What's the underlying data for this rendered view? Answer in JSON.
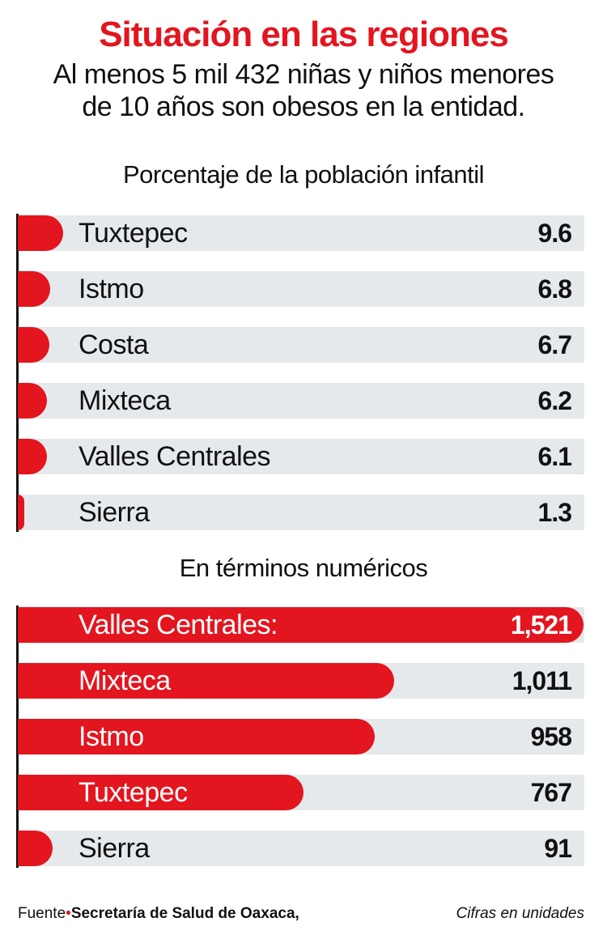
{
  "title": "Situación en las regiones",
  "subtitle_line1": "Al menos 5 mil 432 niñas y niños menores",
  "subtitle_line2": "de 10 años son obesos en la entidad.",
  "colors": {
    "accent": "#e3151f",
    "band": "#e6e9ec"
  },
  "chart_data": [
    {
      "type": "bar",
      "orientation": "horizontal",
      "title": "Porcentaje de la población infantil",
      "categories": [
        "Tuxtepec",
        "Istmo",
        "Costa",
        "Mixteca",
        "Valles Centrales",
        "Sierra"
      ],
      "value_labels": [
        "9.6",
        "6.8",
        "6.7",
        "6.2",
        "6.1",
        "1.3"
      ],
      "values": [
        9.6,
        6.8,
        6.7,
        6.2,
        6.1,
        1.3
      ]
    },
    {
      "type": "bar",
      "orientation": "horizontal",
      "title": "En términos numéricos",
      "categories": [
        "Valles Centrales:",
        "Mixteca",
        "Istmo",
        "Tuxtepec",
        "Sierra"
      ],
      "value_labels": [
        "1,521",
        "1,011",
        "958",
        "767",
        "91"
      ],
      "values": [
        1521,
        1011,
        958,
        767,
        91
      ]
    }
  ],
  "footer": {
    "source_label": "Fuente",
    "source_separator": "•",
    "source": "Secretaría de Salud de Oaxaca,",
    "note": "Cifras en unidades"
  }
}
